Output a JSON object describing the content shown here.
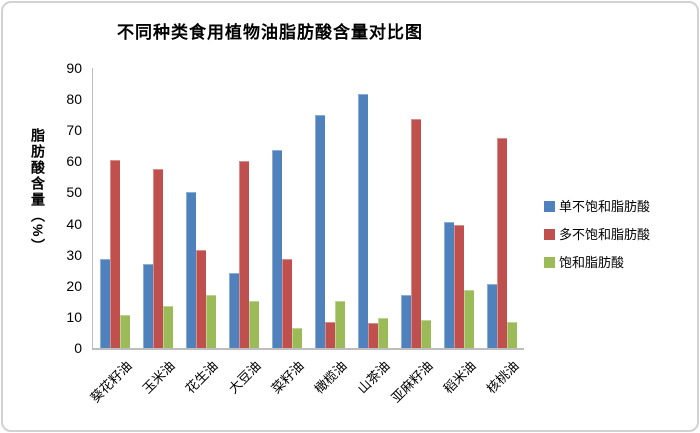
{
  "chart": {
    "title": "不同种类食用植物油脂肪酸含量对比图",
    "y_axis_title": "脂肪酸含量（%）"
  },
  "chart_data": {
    "type": "bar",
    "title": "不同种类食用植物油脂肪酸含量对比图",
    "xlabel": "",
    "ylabel": "脂肪酸含量（%）",
    "ylim": [
      0,
      90
    ],
    "y_ticks": [
      0,
      10,
      20,
      30,
      40,
      50,
      60,
      70,
      80,
      90
    ],
    "grid": false,
    "legend_position": "right",
    "categories": [
      "葵花籽油",
      "玉米油",
      "花生油",
      "大豆油",
      "菜籽油",
      "橄榄油",
      "山茶油",
      "亚麻籽油",
      "稻米油",
      "核桃油"
    ],
    "series": [
      {
        "name": "单不饱和脂肪酸",
        "color": "#4F81BD",
        "values": [
          28.5,
          27,
          50,
          24,
          63.5,
          75,
          81.5,
          17,
          40.5,
          20.5
        ]
      },
      {
        "name": "多不饱和脂肪酸",
        "color": "#C0504D",
        "values": [
          60.5,
          57.5,
          31.5,
          60,
          28.5,
          8.5,
          8,
          73.5,
          39.5,
          67.5
        ]
      },
      {
        "name": "饱和脂肪酸",
        "color": "#9BBB59",
        "values": [
          10.5,
          13.5,
          17,
          15,
          6.5,
          15,
          9.5,
          9,
          18.5,
          8.5
        ]
      }
    ]
  }
}
